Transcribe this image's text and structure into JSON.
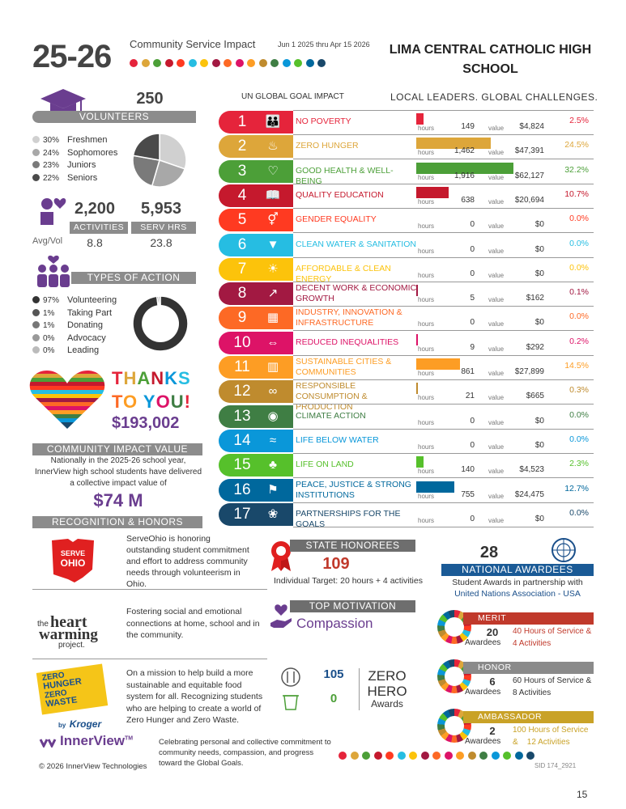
{
  "header": {
    "year": "25-26",
    "title": "Community Service Impact",
    "dates": "Jun 1 2025 thru Apr 15 2026",
    "school_line1": "LIMA CENTRAL CATHOLIC HIGH",
    "school_line2": "SCHOOL",
    "un_goal_label": "UN GLOBAL GOAL IMPACT",
    "slogan": "LOCAL LEADERS.  GLOBAL CHALLENGES.",
    "dot_colors": [
      "#e5243b",
      "#dda63a",
      "#4c9f38",
      "#c5192d",
      "#ff3a21",
      "#26bde2",
      "#fcc30b",
      "#a21942",
      "#fd6925",
      "#dd1367",
      "#fd9d24",
      "#bf8b2e",
      "#3f7e44",
      "#0a97d9",
      "#56c02b",
      "#00689d",
      "#19486a"
    ]
  },
  "volunteers": {
    "count": "250",
    "label": "VOLUNTEERS",
    "legend": [
      {
        "pct": "30%",
        "label": "Freshmen",
        "color": "#d0d0d0"
      },
      {
        "pct": "24%",
        "label": "Sophomores",
        "color": "#a8a8a8"
      },
      {
        "pct": "23%",
        "label": "Juniors",
        "color": "#7a7a7a"
      },
      {
        "pct": "22%",
        "label": "Seniors",
        "color": "#4a4a4a"
      }
    ]
  },
  "activities": {
    "count": "2,200",
    "label": "ACTIVITIES",
    "avg_label": "Avg/Vol",
    "avg": "8.8",
    "serv_hrs": "5,953",
    "serv_label": "SERV HRS",
    "serv_avg": "23.8"
  },
  "types_of_action": {
    "label": "TYPES OF ACTION",
    "legend": [
      {
        "pct": "97%",
        "label": "Volunteering",
        "color": "#333333"
      },
      {
        "pct": "1%",
        "label": "Taking Part",
        "color": "#555555"
      },
      {
        "pct": "1%",
        "label": "Donating",
        "color": "#777777"
      },
      {
        "pct": "0%",
        "label": "Advocacy",
        "color": "#999999"
      },
      {
        "pct": "0%",
        "label": "Leading",
        "color": "#bbbbbb"
      }
    ]
  },
  "thanks": {
    "line1": "THANKS",
    "line2": "TO YOU!",
    "amount": "$193,002"
  },
  "community_value": {
    "label": "COMMUNITY IMPACT VALUE",
    "text1": "Nationally in the 2025-26 school year,",
    "text2": "InnerView high school students have delivered",
    "text3": "a collective impact value of",
    "amount": "$74 M"
  },
  "recognition": {
    "label": "RECOGNITION & HONORS"
  },
  "goals": [
    {
      "num": "1",
      "name": "NO POVERTY",
      "color": "#e5243b",
      "hours": "149",
      "value": "$4,824",
      "pct": "2.5%",
      "icon": "family-icon"
    },
    {
      "num": "2",
      "name": "ZERO HUNGER",
      "color": "#dda63a",
      "hours": "1,462",
      "value": "$47,391",
      "pct": "24.5%",
      "icon": "bowl-icon"
    },
    {
      "num": "3",
      "name": "GOOD HEALTH & WELL-BEING",
      "color": "#4c9f38",
      "hours": "1,916",
      "value": "$62,127",
      "pct": "32.2%",
      "icon": "heartbeat-icon"
    },
    {
      "num": "4",
      "name": "QUALITY EDUCATION",
      "color": "#c5192d",
      "hours": "638",
      "value": "$20,694",
      "pct": "10.7%",
      "icon": "book-icon"
    },
    {
      "num": "5",
      "name": "GENDER EQUALITY",
      "color": "#ff3a21",
      "hours": "0",
      "value": "$0",
      "pct": "0.0%",
      "icon": "gender-icon"
    },
    {
      "num": "6",
      "name": "CLEAN WATER & SANITATION",
      "color": "#26bde2",
      "hours": "0",
      "value": "$0",
      "pct": "0.0%",
      "icon": "water-icon"
    },
    {
      "num": "7",
      "name": "AFFORDABLE & CLEAN ENERGY",
      "color": "#fcc30b",
      "hours": "0",
      "value": "$0",
      "pct": "0.0%",
      "icon": "sun-icon"
    },
    {
      "num": "8",
      "name": "DECENT WORK & ECONOMIC GROWTH",
      "color": "#a21942",
      "hours": "5",
      "value": "$162",
      "pct": "0.1%",
      "icon": "growth-icon"
    },
    {
      "num": "9",
      "name": "INDUSTRY, INNOVATION & INFRASTRUCTURE",
      "color": "#fd6925",
      "hours": "0",
      "value": "$0",
      "pct": "0.0%",
      "icon": "cubes-icon"
    },
    {
      "num": "10",
      "name": "REDUCED INEQUALITIES",
      "color": "#dd1367",
      "hours": "9",
      "value": "$292",
      "pct": "0.2%",
      "icon": "equal-icon"
    },
    {
      "num": "11",
      "name": "SUSTAINABLE CITIES & COMMUNITIES",
      "color": "#fd9d24",
      "hours": "861",
      "value": "$27,899",
      "pct": "14.5%",
      "icon": "city-icon"
    },
    {
      "num": "12",
      "name": "RESPONSIBLE CONSUMPTION & PRODUCTION",
      "color": "#bf8b2e",
      "hours": "21",
      "value": "$665",
      "pct": "0.3%",
      "icon": "infinity-icon"
    },
    {
      "num": "13",
      "name": "CLIMATE ACTION",
      "color": "#3f7e44",
      "hours": "0",
      "value": "$0",
      "pct": "0.0%",
      "icon": "eye-globe-icon"
    },
    {
      "num": "14",
      "name": "LIFE BELOW WATER",
      "color": "#0a97d9",
      "hours": "0",
      "value": "$0",
      "pct": "0.0%",
      "icon": "fish-icon"
    },
    {
      "num": "15",
      "name": "LIFE ON LAND",
      "color": "#56c02b",
      "hours": "140",
      "value": "$4,523",
      "pct": "2.3%",
      "icon": "tree-icon"
    },
    {
      "num": "16",
      "name": "PEACE, JUSTICE & STRONG INSTITUTIONS",
      "color": "#00689d",
      "hours": "755",
      "value": "$24,475",
      "pct": "12.7%",
      "icon": "dove-icon"
    },
    {
      "num": "17",
      "name": "PARTNERSHIPS FOR THE GOALS",
      "color": "#19486a",
      "hours": "0",
      "value": "$0",
      "pct": "0.0%",
      "icon": "partnership-icon"
    }
  ],
  "goal_labels": {
    "hours": "hours",
    "value": "value"
  },
  "serve_ohio": {
    "logo_line1": "SERVE",
    "logo_line2": "OHIO",
    "text": "ServeOhio is honoring outstanding student commitment and effort to address community needs through volunteerism in Ohio."
  },
  "state_honorees": {
    "label": "STATE HONOREES",
    "count": "109",
    "target": "Individual Target: 20 hours + 4 activities"
  },
  "heartwarming": {
    "logo_the": "the",
    "logo_heart": "heart",
    "logo_warming": "warming",
    "logo_project": "project.",
    "text": "Fostering social and emotional connections at home, school and in the community."
  },
  "top_motivation": {
    "label": "TOP MOTIVATION",
    "value": "Compassion"
  },
  "zero_hero": {
    "logo_zero": "ZERO",
    "logo_hunger": "HUNGER",
    "logo_zero2": "ZERO",
    "logo_waste": "WASTE",
    "logo_by": "by",
    "logo_kroger": "Kroger",
    "text": "On a mission to help build a more sustainable and equitable food system for all. Recognizing students who are helping to create a world of Zero Hunger and Zero Waste.",
    "hunger_count": "105",
    "waste_count": "0",
    "title1": "ZERO",
    "title2": "HERO",
    "title3": "Awards"
  },
  "national": {
    "count": "28",
    "label": "NATIONAL AWARDEES",
    "text1": "Student Awards in partnership with",
    "text2": "United Nations Association - USA"
  },
  "awards": [
    {
      "label": "MERIT",
      "count": "20",
      "awardees": "Awardees",
      "line1": "40 Hours of Service &",
      "line2": "4 Activities",
      "bar_color": "#c0392b",
      "text_color": "#c0392b"
    },
    {
      "label": "HONOR",
      "count": "6",
      "awardees": "Awardees",
      "line1": "60 Hours of Service &",
      "line2": "8 Activities",
      "bar_color": "#8a8a8a",
      "text_color": "#333333"
    },
    {
      "label": "AMBASSADOR",
      "count": "2",
      "awardees": "Awardees",
      "line1": "100 Hours of Service",
      "line2": "&    12 Activities",
      "bar_color": "#c9a227",
      "text_color": "#c9a227"
    }
  ],
  "footer": {
    "brand": "InnerView",
    "tm": "TM",
    "copyright": "© 2026 InnerView Technologies",
    "text": "Celebrating personal and collective commitment to community needs, compassion, and progress toward the Global Goals.",
    "sid": "SID 174_2921",
    "page": "15"
  }
}
